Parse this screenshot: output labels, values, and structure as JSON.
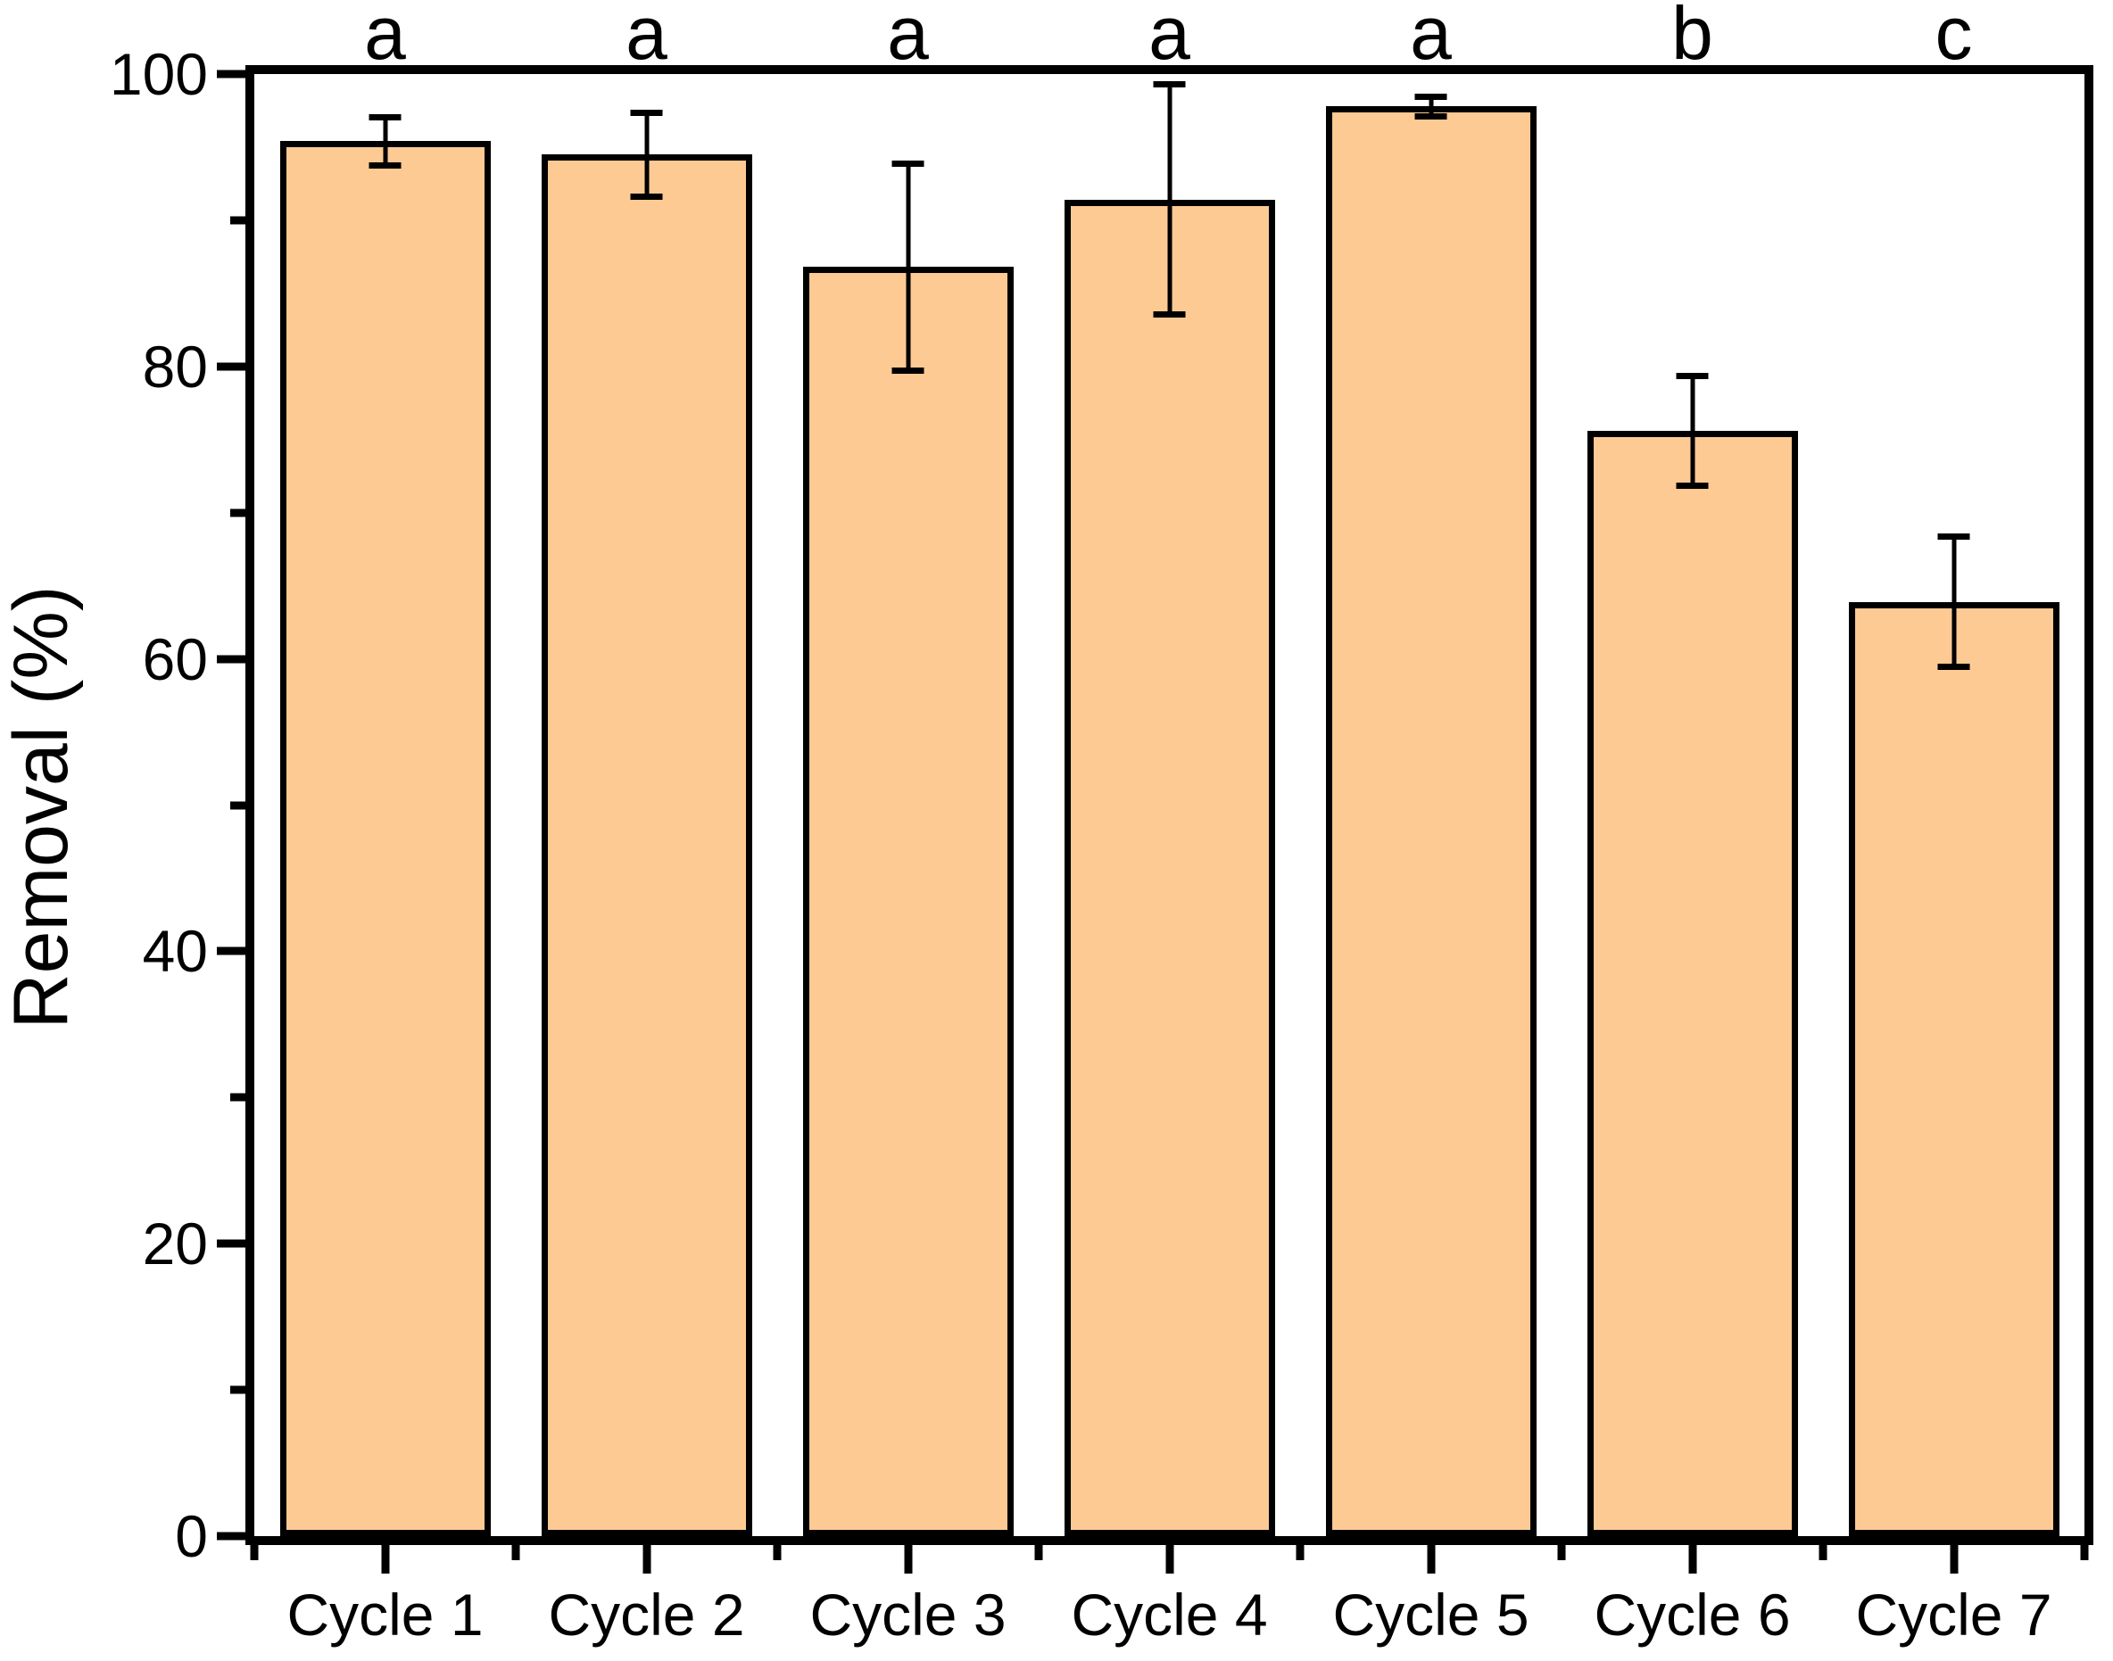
{
  "figure": {
    "background": "#ffffff"
  },
  "chart_data": {
    "type": "bar",
    "title": "",
    "categories": [
      "Cycle 1",
      "Cycle 2",
      "Cycle 3",
      "Cycle 4",
      "Cycle 5",
      "Cycle 6",
      "Cycle 7"
    ],
    "values": [
      95.4,
      94.5,
      86.8,
      91.4,
      97.8,
      75.6,
      63.9
    ],
    "errors": [
      1.7,
      2.9,
      7.1,
      7.9,
      0.7,
      3.8,
      4.5
    ],
    "sig_letters": [
      "a",
      "a",
      "a",
      "a",
      "a",
      "b",
      "c"
    ],
    "xlabel": "",
    "ylabel": "Removal (%)",
    "ylim": [
      0,
      100
    ],
    "yticks_major": [
      0,
      20,
      40,
      60,
      80,
      100
    ],
    "yticks_minor": [
      10,
      30,
      50,
      70,
      90
    ],
    "bar_fill": "#FDCA94",
    "bar_edge": "#000000",
    "frame": true,
    "grid": false,
    "legend": "none"
  }
}
